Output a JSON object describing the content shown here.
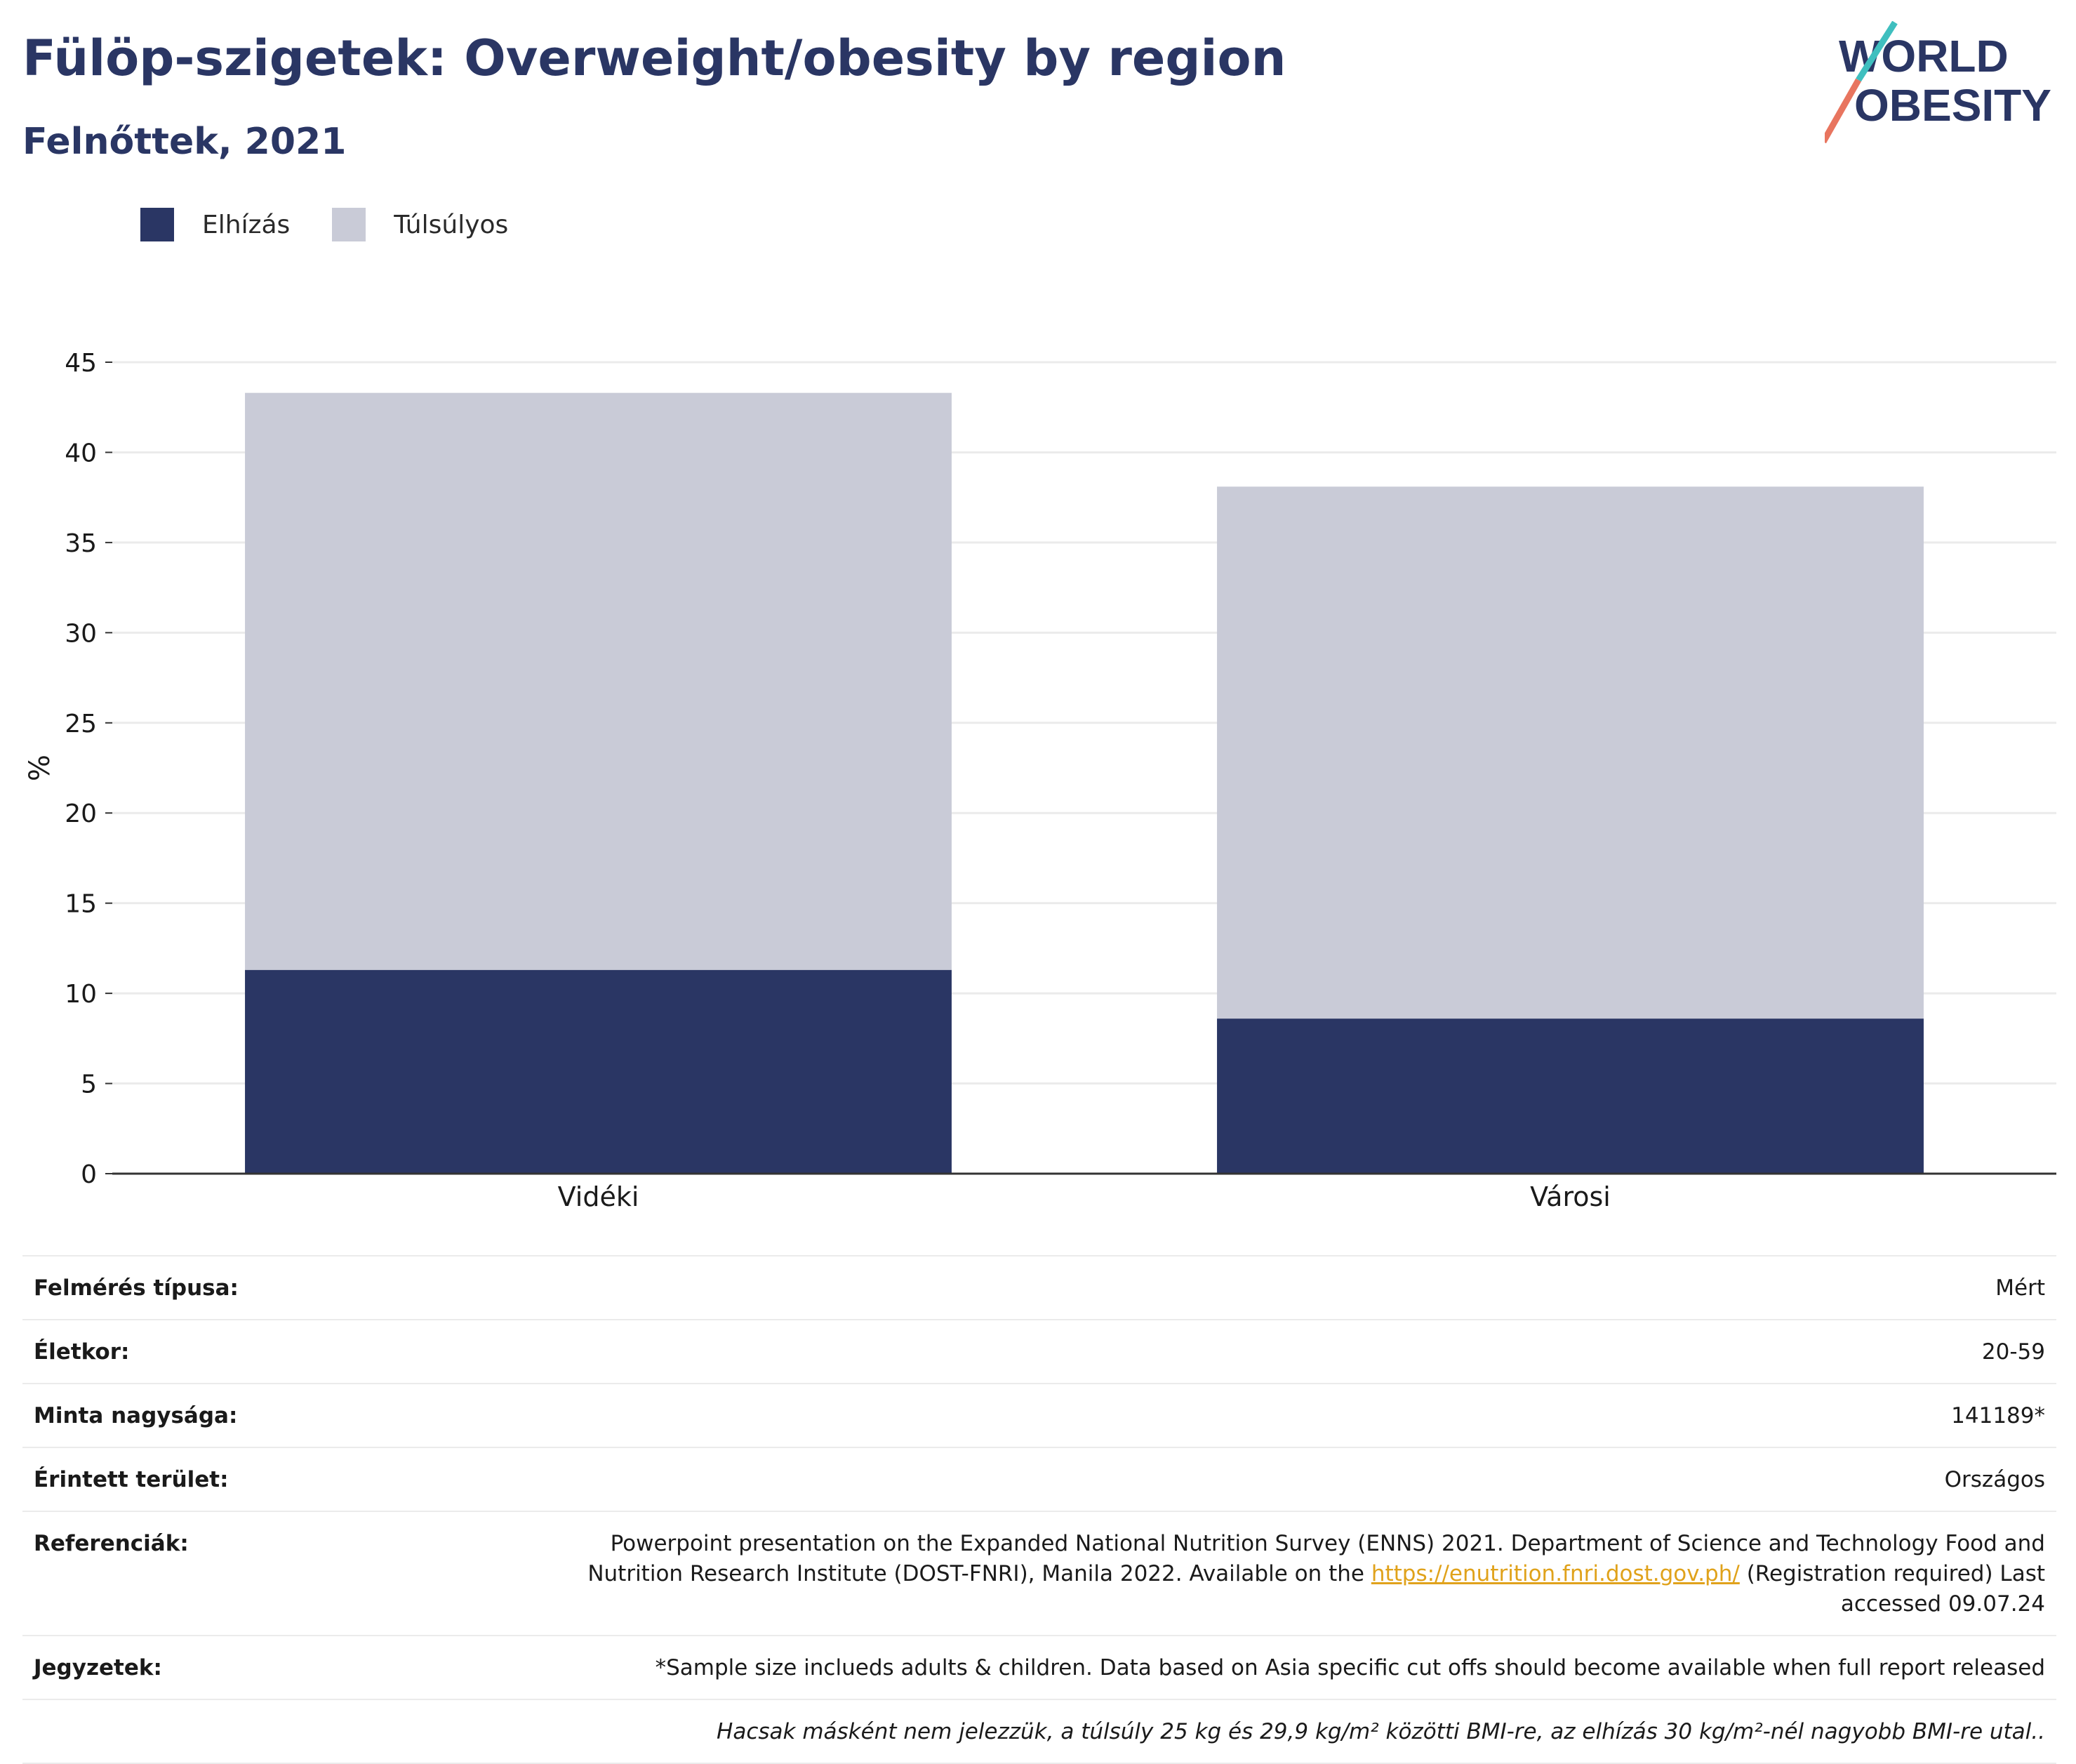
{
  "title": "Fülöp-szigetek: Overweight/obesity by region",
  "subtitle": "Felnőttek, 2021",
  "logo": {
    "line1": "WORLD",
    "line2": "OBESITY"
  },
  "legend": [
    {
      "label": "Elhízás",
      "color": "#2a3664"
    },
    {
      "label": "Túlsúlyos",
      "color": "#c9cbd7"
    }
  ],
  "chart_data": {
    "type": "bar",
    "stacked": true,
    "categories": [
      "Vidéki",
      "Városi"
    ],
    "series": [
      {
        "name": "Elhízás",
        "color": "#2a3664",
        "values": [
          11.3,
          8.6
        ]
      },
      {
        "name": "Túlsúlyos",
        "color": "#c9cbd7",
        "values": [
          32.0,
          29.5
        ]
      }
    ],
    "ylabel": "%",
    "ylim": [
      0,
      45
    ],
    "yticks": [
      0,
      5,
      10,
      15,
      20,
      25,
      30,
      35,
      40,
      45
    ],
    "grid": true,
    "legend_position": "top-left"
  },
  "info": {
    "survey_type": {
      "label": "Felmérés típusa:",
      "value": "Mért"
    },
    "age": {
      "label": "Életkor:",
      "value": "20-59"
    },
    "sample_size": {
      "label": "Minta nagysága:",
      "value": "141189*"
    },
    "area": {
      "label": "Érintett terület:",
      "value": "Országos"
    },
    "references": {
      "label": "Referenciák:",
      "text_before": "Powerpoint presentation on the Expanded National Nutrition Survey (ENNS) 2021. Department of Science and Technology Food and Nutrition Research Institute (DOST-FNRI), Manila 2022. Available on the ",
      "link": "https://enutrition.fnri.dost.gov.ph/",
      "text_after": " (Registration required) Last accessed 09.07.24"
    },
    "notes": {
      "label": "Jegyzetek:",
      "value": "*Sample size inclueds adults & children. Data based on Asia specific cut offs should become available when full report released"
    },
    "footnote": "Hacsak másként nem jelezzük, a túlsúly 25 kg és 29,9 kg/m² közötti BMI-re, az elhízás 30 kg/m²-nél nagyobb BMI-re utal.."
  }
}
